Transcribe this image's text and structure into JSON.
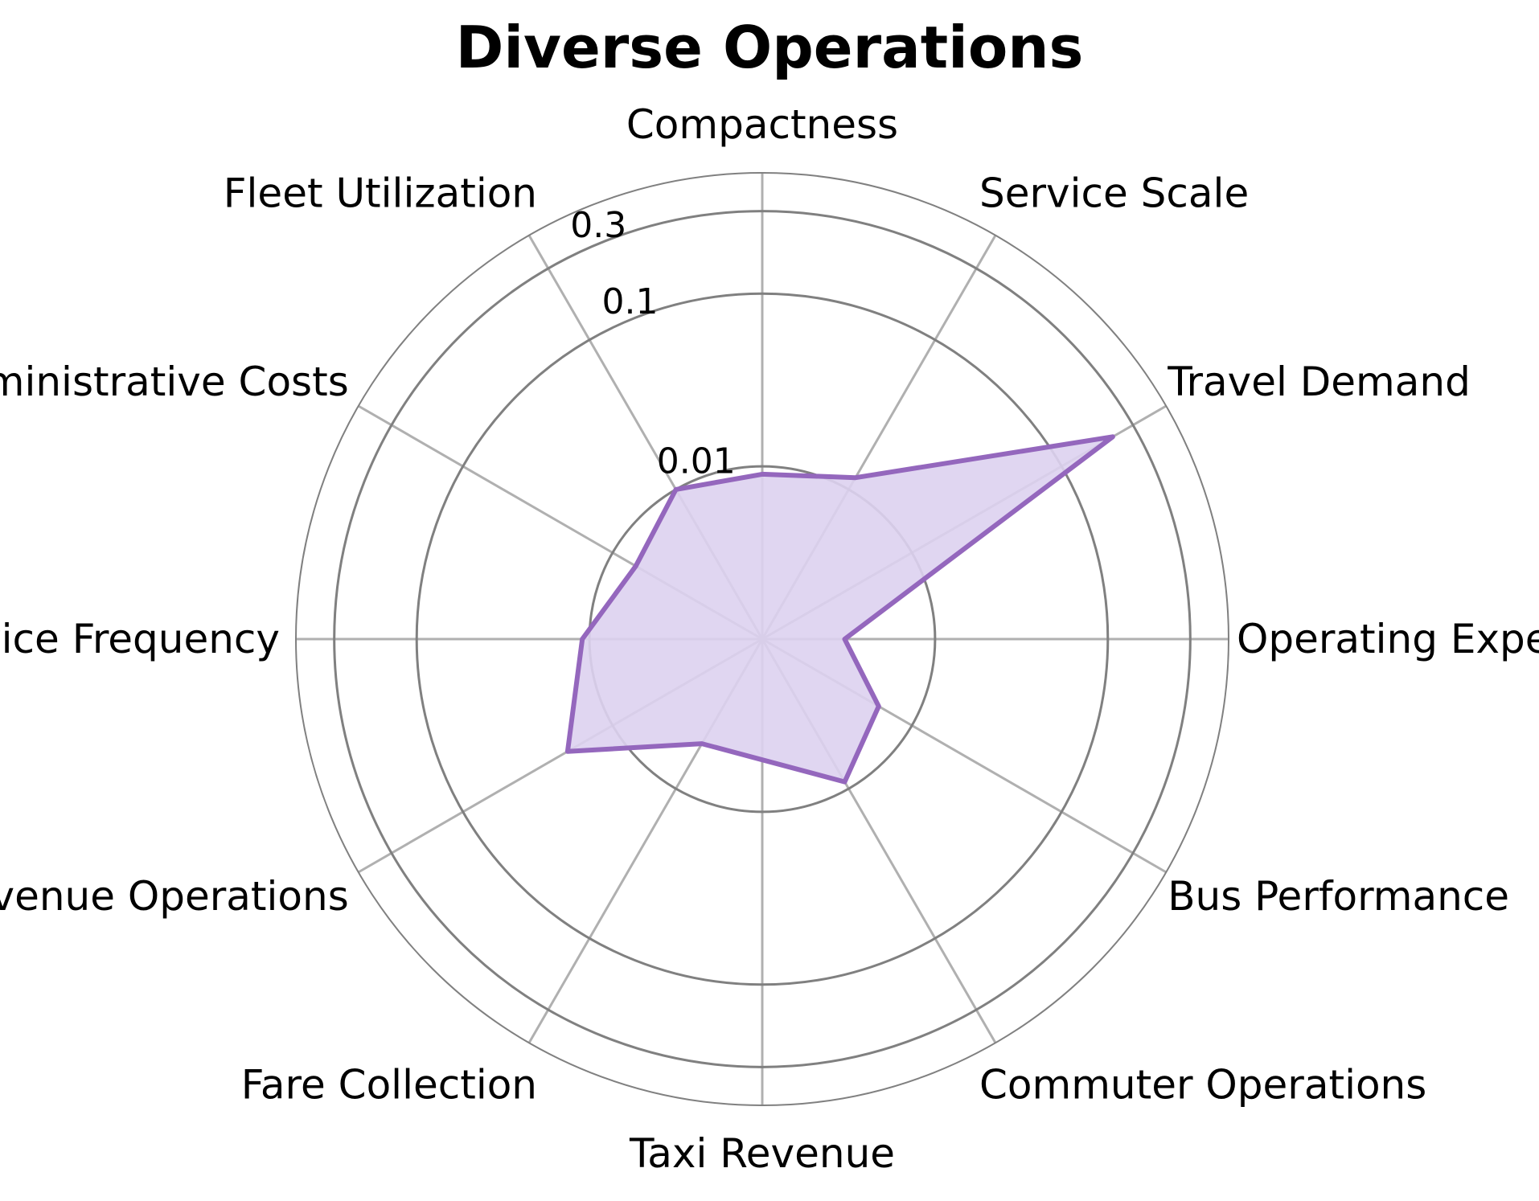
{
  "chart_data": {
    "type": "radar",
    "title": "Diverse Operations",
    "categories": [
      "Compactness",
      "Service Scale",
      "Travel Demand",
      "Operating Expenses",
      "Bus Performance",
      "Commuter Operations",
      "Taxi Revenue",
      "Fare Collection",
      "Revenue Operations",
      "Service Frequency",
      "Administrative Costs",
      "Fleet Utilization"
    ],
    "values": [
      0.009,
      0.012,
      0.22,
      0.003,
      0.006,
      0.009,
      0.005,
      0.005,
      0.02,
      0.011,
      0.007,
      0.01
    ],
    "scale": "log",
    "rlim": [
      0.001,
      0.5
    ],
    "r_ticks": [
      0.01,
      0.1,
      0.3
    ],
    "r_tick_labels": [
      "0.01",
      "0.1",
      "0.3"
    ],
    "grid": true,
    "colors": {
      "series": "#9467bd",
      "fill": "#ddd1ef",
      "title": "#9467bd",
      "grid": "#b0b0b0",
      "ring": "#808080"
    }
  }
}
